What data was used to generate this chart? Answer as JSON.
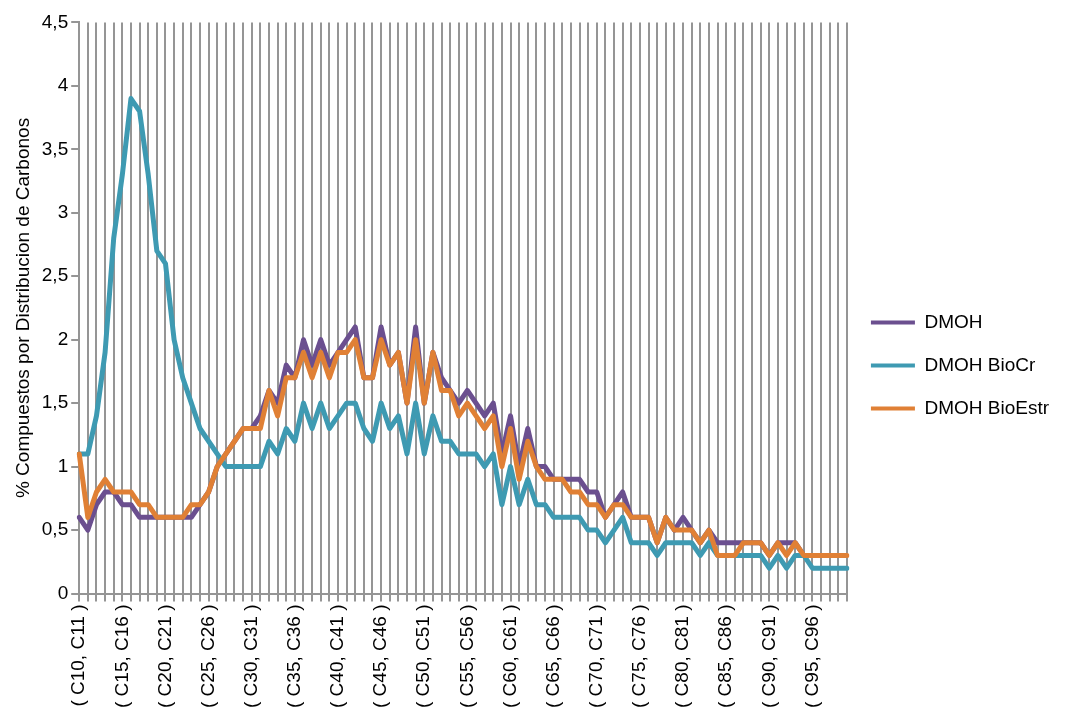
{
  "chart_data": {
    "type": "line",
    "ylabel": "% Compuestos por Distribucion de Carbonos",
    "categories": [
      "( C10, C11 )",
      null,
      null,
      null,
      null,
      "( C15, C16 )",
      null,
      null,
      null,
      null,
      "( C20, C21 )",
      null,
      null,
      null,
      null,
      "( C25, C26 )",
      null,
      null,
      null,
      null,
      "( C30, C31 )",
      null,
      null,
      null,
      null,
      "( C35, C36 )",
      null,
      null,
      null,
      null,
      "( C40, C41 )",
      null,
      null,
      null,
      null,
      "( C45, C46 )",
      null,
      null,
      null,
      null,
      "( C50, C51 )",
      null,
      null,
      null,
      null,
      "( C55, C56 )",
      null,
      null,
      null,
      null,
      "( C60, C61 )",
      null,
      null,
      null,
      null,
      "( C65, C66 )",
      null,
      null,
      null,
      null,
      "( C70, C71 )",
      null,
      null,
      null,
      null,
      "( C75, C76 )",
      null,
      null,
      null,
      null,
      "( C80, C81 )",
      null,
      null,
      null,
      null,
      "( C85, C86 )",
      null,
      null,
      null,
      null,
      "( C90, C91 )",
      null,
      null,
      null,
      null,
      "( C95, C96 )",
      null,
      null,
      null,
      null
    ],
    "series": [
      {
        "name": "DMOH",
        "color": "#6b4f8f",
        "values": [
          0.6,
          0.5,
          0.7,
          0.8,
          0.8,
          0.7,
          0.7,
          0.6,
          0.6,
          0.6,
          0.6,
          0.6,
          0.6,
          0.6,
          0.7,
          0.8,
          1.0,
          1.1,
          1.2,
          1.3,
          1.3,
          1.4,
          1.6,
          1.5,
          1.8,
          1.7,
          2.0,
          1.8,
          2.0,
          1.8,
          1.9,
          2.0,
          2.1,
          1.7,
          1.7,
          2.1,
          1.8,
          1.9,
          1.5,
          2.1,
          1.5,
          1.9,
          1.7,
          1.6,
          1.5,
          1.6,
          1.5,
          1.4,
          1.5,
          1.1,
          1.4,
          1.0,
          1.3,
          1.0,
          1.0,
          0.9,
          0.9,
          0.9,
          0.9,
          0.8,
          0.8,
          0.6,
          0.7,
          0.8,
          0.6,
          0.6,
          0.6,
          0.4,
          0.6,
          0.5,
          0.6,
          0.5,
          0.4,
          0.5,
          0.4,
          0.4,
          0.4,
          0.4,
          0.4,
          0.4,
          0.3,
          0.4,
          0.4,
          0.4,
          0.3,
          null,
          null,
          null,
          null,
          null
        ]
      },
      {
        "name": "DMOH BioCr",
        "color": "#3e9ab2",
        "values": [
          1.1,
          1.1,
          1.4,
          1.9,
          2.8,
          3.3,
          3.9,
          3.8,
          3.3,
          2.7,
          2.6,
          2.0,
          1.7,
          1.5,
          1.3,
          1.2,
          1.1,
          1.0,
          1.0,
          1.0,
          1.0,
          1.0,
          1.2,
          1.1,
          1.3,
          1.2,
          1.5,
          1.3,
          1.5,
          1.3,
          1.4,
          1.5,
          1.5,
          1.3,
          1.2,
          1.5,
          1.3,
          1.4,
          1.1,
          1.5,
          1.1,
          1.4,
          1.2,
          1.2,
          1.1,
          1.1,
          1.1,
          1.0,
          1.1,
          0.7,
          1.0,
          0.7,
          0.9,
          0.7,
          0.7,
          0.6,
          0.6,
          0.6,
          0.6,
          0.5,
          0.5,
          0.4,
          0.5,
          0.6,
          0.4,
          0.4,
          0.4,
          0.3,
          0.4,
          0.4,
          0.4,
          0.4,
          0.3,
          0.4,
          0.3,
          0.3,
          0.3,
          0.3,
          0.3,
          0.3,
          0.2,
          0.3,
          0.2,
          0.3,
          0.3,
          0.2,
          0.2,
          0.2,
          0.2,
          0.2
        ]
      },
      {
        "name": "DMOH BioEstr",
        "color": "#e08035",
        "values": [
          1.1,
          0.6,
          0.8,
          0.9,
          0.8,
          0.8,
          0.8,
          0.7,
          0.7,
          0.6,
          0.6,
          0.6,
          0.6,
          0.7,
          0.7,
          0.8,
          1.0,
          1.1,
          1.2,
          1.3,
          1.3,
          1.3,
          1.6,
          1.4,
          1.7,
          1.7,
          1.9,
          1.7,
          1.9,
          1.7,
          1.9,
          1.9,
          2.0,
          1.7,
          1.7,
          2.0,
          1.8,
          1.9,
          1.5,
          2.0,
          1.5,
          1.9,
          1.6,
          1.6,
          1.4,
          1.5,
          1.4,
          1.3,
          1.4,
          1.0,
          1.3,
          0.9,
          1.2,
          1.0,
          0.9,
          0.9,
          0.9,
          0.8,
          0.8,
          0.7,
          0.7,
          0.6,
          0.7,
          0.7,
          0.6,
          0.6,
          0.6,
          0.4,
          0.6,
          0.5,
          0.5,
          0.5,
          0.4,
          0.5,
          0.3,
          0.3,
          0.3,
          0.4,
          0.4,
          0.4,
          0.3,
          0.4,
          0.3,
          0.4,
          0.3,
          0.3,
          0.3,
          0.3,
          0.3,
          0.3
        ]
      }
    ],
    "ylim": [
      0,
      4.5
    ],
    "yticks": [
      0,
      {
        "value": 0.5,
        "label": "0,5"
      },
      1,
      {
        "value": 1.5,
        "label": "1,5"
      },
      2,
      {
        "value": 2.5,
        "label": "2,5"
      },
      3,
      {
        "value": 3.5,
        "label": "3,5"
      },
      4,
      {
        "value": 4.5,
        "label": "4,5"
      }
    ],
    "grid": "x",
    "legend": "right",
    "marker": "none",
    "line_style": "solid"
  }
}
